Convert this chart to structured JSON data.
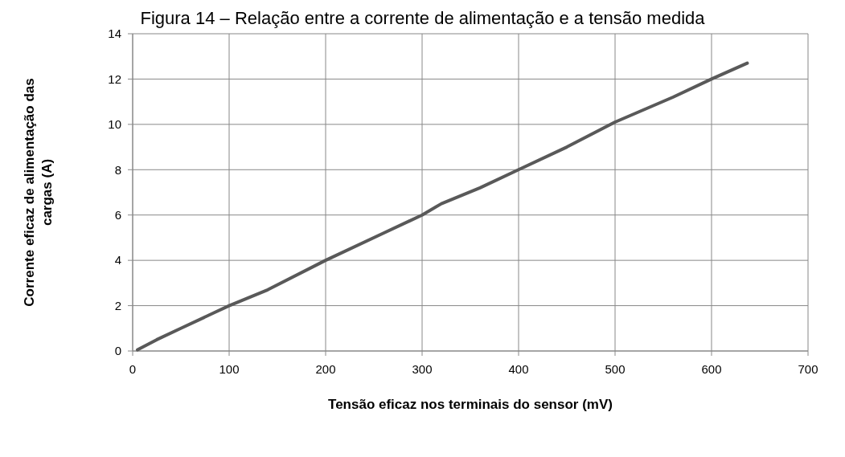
{
  "chart_data": {
    "type": "line",
    "title": "Figura 14 – Relação entre a corrente de alimentação e a tensão medida",
    "xlabel": "Tensão eficaz nos terminais do sensor (mV)",
    "ylabel": "Corrente eficaz de alimentação das cargas (A)",
    "series": [
      {
        "color": "#595959",
        "x": [
          5,
          25,
          50,
          85,
          100,
          140,
          200,
          260,
          300,
          320,
          360,
          400,
          450,
          500,
          560,
          600,
          637
        ],
        "values": [
          0.05,
          0.5,
          1.0,
          1.7,
          2.0,
          2.7,
          4.0,
          5.2,
          6.0,
          6.5,
          7.2,
          8.0,
          9.0,
          10.1,
          11.2,
          12.0,
          12.7
        ]
      }
    ],
    "xlim": [
      0,
      700
    ],
    "xticks": [
      0,
      100,
      200,
      300,
      400,
      500,
      600,
      700
    ],
    "ylim": [
      0,
      14
    ],
    "yticks": [
      0,
      2,
      4,
      6,
      8,
      10,
      12,
      14
    ],
    "grid": true,
    "marker": "none",
    "line_style": "solid"
  }
}
